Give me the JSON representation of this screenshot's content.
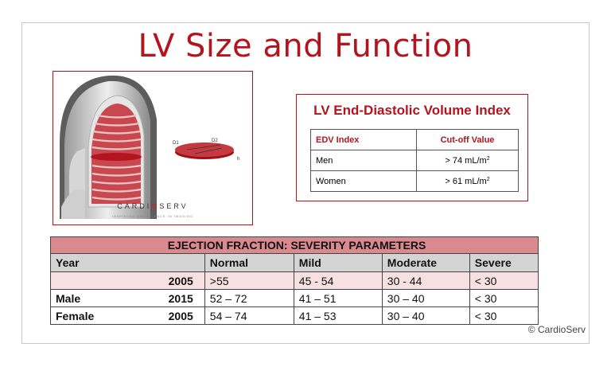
{
  "title": "LV Size and Function",
  "illustration": {
    "brand_prefix": "CARDI",
    "brand_mark": "O",
    "brand_suffix": "SERV",
    "tagline": "INSPIRING EXCELLENCE IN IMAGING",
    "labels": {
      "d1": "D1",
      "d2": "D2",
      "h": "h"
    }
  },
  "edv": {
    "title": "LV End-Diastolic Volume Index",
    "header": [
      "EDV Index",
      "Cut-off Value"
    ],
    "rows": [
      {
        "label": "Men",
        "value": "> 74 mL/m",
        "sup": "2"
      },
      {
        "label": "Women",
        "value": "> 61 mL/m",
        "sup": "2"
      }
    ]
  },
  "ef": {
    "title": "EJECTION FRACTION:  SEVERITY PARAMETERS",
    "columns": {
      "year": "Year",
      "normal": "Normal",
      "mild": "Mild",
      "moderate": "Moderate",
      "severe": "Severe"
    },
    "rows": [
      {
        "sex": "",
        "year": "2005",
        "normal": ">55",
        "mild": "45 - 54",
        "moderate": "30 - 44",
        "severe": "< 30"
      },
      {
        "sex": "Male",
        "year": "2015",
        "normal": "52 – 72",
        "mild": "41 – 51",
        "moderate": "30 – 40",
        "severe": "< 30"
      },
      {
        "sex": "Female",
        "year": "2005",
        "normal": "54 – 74",
        "mild": "41 – 53",
        "moderate": "30 – 40",
        "severe": "< 30"
      }
    ]
  },
  "copyright": "© CardioServ",
  "colors": {
    "accent": "#b3141e",
    "header_band": "#d98a8e",
    "pink_row": "#f7e0e1",
    "col_header": "#d4d4d4"
  }
}
